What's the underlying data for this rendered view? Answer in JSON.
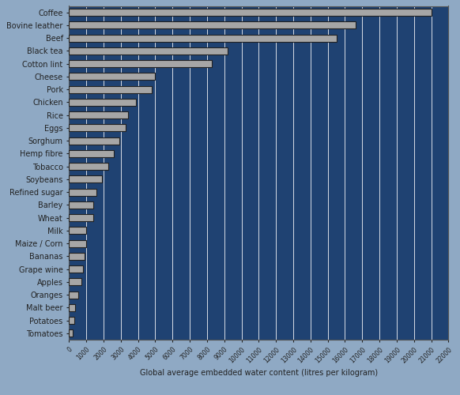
{
  "chart_data": {
    "type": "bar",
    "orientation": "horizontal",
    "xlabel": "Global average embedded water content (litres per kilogram)",
    "categories": [
      "Coffee",
      "Bovine leather",
      "Beef",
      "Black tea",
      "Cotton lint",
      "Cheese",
      "Pork",
      "Chicken",
      "Rice",
      "Eggs",
      "Sorghum",
      "Hemp fibre",
      "Tobacco",
      "Soybeans",
      "Refined sugar",
      "Barley",
      "Wheat",
      "Milk",
      "Maize / Corn",
      "Bananas",
      "Grape wine",
      "Apples",
      "Oranges",
      "Malt beer",
      "Potatoes",
      "Tomatoes"
    ],
    "values": [
      21000,
      16600,
      15500,
      9200,
      8300,
      5000,
      4800,
      3900,
      3400,
      3300,
      2900,
      2600,
      2300,
      1900,
      1600,
      1400,
      1400,
      1000,
      1000,
      900,
      800,
      700,
      550,
      350,
      300,
      200
    ],
    "color": "#a6a6a6",
    "xlim": [
      0,
      22000
    ],
    "xticks": [
      0,
      1000,
      2000,
      3000,
      4000,
      5000,
      6000,
      7000,
      8000,
      9000,
      10000,
      11000,
      12000,
      13000,
      14000,
      15000,
      16000,
      17000,
      18000,
      19000,
      20000,
      21000,
      22000
    ],
    "grid": true
  }
}
